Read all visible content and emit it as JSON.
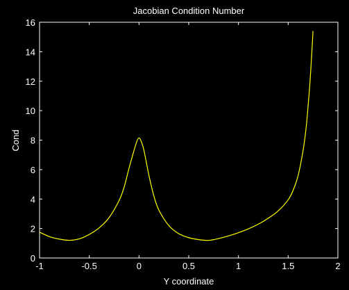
{
  "chart_data": {
    "type": "line",
    "title": "Jacobian Condition Number",
    "xlabel": "Y coordinate",
    "ylabel": "Cond",
    "xlim": [
      -1,
      2
    ],
    "ylim": [
      0,
      16
    ],
    "xticks": [
      -1,
      -0.5,
      0,
      0.5,
      1,
      1.5,
      2
    ],
    "yticks": [
      0,
      2,
      4,
      6,
      8,
      10,
      12,
      14,
      16
    ],
    "xtick_labels": [
      "-1",
      "-0.5",
      "0",
      "0.5",
      "1",
      "1.5",
      "2"
    ],
    "ytick_labels": [
      "0",
      "2",
      "4",
      "6",
      "8",
      "10",
      "12",
      "14",
      "16"
    ],
    "grid": false,
    "background": "#000000",
    "axes_color": "#ffffff",
    "series": [
      {
        "color": "#ffff00",
        "x": [
          -1.0,
          -0.9,
          -0.8,
          -0.7,
          -0.6,
          -0.5,
          -0.4,
          -0.3,
          -0.2,
          -0.15,
          -0.1,
          -0.05,
          -0.02,
          0.0,
          0.02,
          0.05,
          0.1,
          0.15,
          0.2,
          0.3,
          0.4,
          0.5,
          0.6,
          0.7,
          0.8,
          0.9,
          1.0,
          1.1,
          1.2,
          1.3,
          1.4,
          1.5,
          1.55,
          1.6,
          1.65,
          1.68,
          1.7,
          1.72,
          1.74,
          1.75
        ],
        "y": [
          1.75,
          1.45,
          1.28,
          1.2,
          1.3,
          1.6,
          2.05,
          2.75,
          3.9,
          4.8,
          6.1,
          7.3,
          7.95,
          8.15,
          7.95,
          7.3,
          5.6,
          4.2,
          3.25,
          2.2,
          1.65,
          1.38,
          1.25,
          1.2,
          1.32,
          1.5,
          1.72,
          1.98,
          2.3,
          2.7,
          3.2,
          3.95,
          4.6,
          5.6,
          7.3,
          8.8,
          10.3,
          12.0,
          14.2,
          15.4
        ]
      }
    ]
  }
}
